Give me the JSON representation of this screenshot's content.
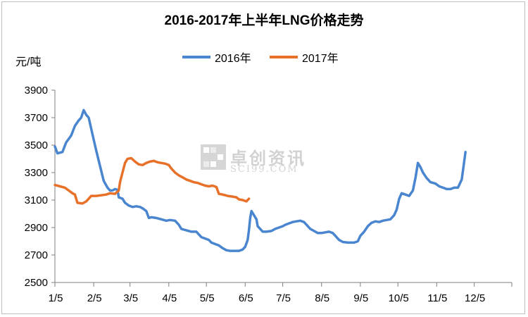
{
  "chart_data": {
    "type": "line",
    "title": "2016-2017年上半年LNG价格走势",
    "ylabel": "元/吨",
    "xlabel": "",
    "ylim": [
      2500,
      3900
    ],
    "yticks": [
      2500,
      2700,
      2900,
      3100,
      3300,
      3500,
      3700,
      3900
    ],
    "x_tick_labels": [
      "1/5",
      "2/5",
      "3/5",
      "4/5",
      "5/5",
      "6/5",
      "7/5",
      "8/5",
      "9/5",
      "10/5",
      "11/5",
      "12/5"
    ],
    "legend_position": "top",
    "grid": false,
    "series": [
      {
        "name": "2016年",
        "color": "#4a86cf",
        "points": [
          [
            1,
            3490
          ],
          [
            3,
            3440
          ],
          [
            7,
            3450
          ],
          [
            10,
            3520
          ],
          [
            14,
            3570
          ],
          [
            17,
            3640
          ],
          [
            20,
            3680
          ],
          [
            22,
            3700
          ],
          [
            24,
            3755
          ],
          [
            26,
            3720
          ],
          [
            28,
            3700
          ],
          [
            31,
            3580
          ],
          [
            34,
            3460
          ],
          [
            37,
            3350
          ],
          [
            40,
            3240
          ],
          [
            43,
            3190
          ],
          [
            45,
            3170
          ],
          [
            47,
            3170
          ],
          [
            49,
            3180
          ],
          [
            51,
            3175
          ],
          [
            52,
            3120
          ],
          [
            55,
            3110
          ],
          [
            57,
            3080
          ],
          [
            60,
            3060
          ],
          [
            63,
            3050
          ],
          [
            66,
            3055
          ],
          [
            69,
            3050
          ],
          [
            71,
            3040
          ],
          [
            74,
            3020
          ],
          [
            76,
            2970
          ],
          [
            78,
            2975
          ],
          [
            82,
            2970
          ],
          [
            86,
            2960
          ],
          [
            90,
            2950
          ],
          [
            93,
            2955
          ],
          [
            97,
            2950
          ],
          [
            100,
            2920
          ],
          [
            102,
            2890
          ],
          [
            106,
            2880
          ],
          [
            110,
            2870
          ],
          [
            114,
            2870
          ],
          [
            116,
            2850
          ],
          [
            118,
            2830
          ],
          [
            121,
            2820
          ],
          [
            124,
            2810
          ],
          [
            126,
            2790
          ],
          [
            129,
            2780
          ],
          [
            132,
            2770
          ],
          [
            135,
            2750
          ],
          [
            138,
            2735
          ],
          [
            141,
            2730
          ],
          [
            145,
            2730
          ],
          [
            148,
            2730
          ],
          [
            151,
            2740
          ],
          [
            153,
            2760
          ],
          [
            155,
            2810
          ],
          [
            156,
            2880
          ],
          [
            157,
            2970
          ],
          [
            158,
            3020
          ],
          [
            160,
            2990
          ],
          [
            162,
            2960
          ],
          [
            163,
            2910
          ],
          [
            165,
            2890
          ],
          [
            167,
            2870
          ],
          [
            170,
            2870
          ],
          [
            174,
            2875
          ],
          [
            177,
            2890
          ],
          [
            180,
            2900
          ],
          [
            183,
            2910
          ],
          [
            185,
            2920
          ],
          [
            188,
            2930
          ],
          [
            191,
            2940
          ],
          [
            194,
            2945
          ],
          [
            197,
            2950
          ],
          [
            200,
            2940
          ],
          [
            202,
            2920
          ],
          [
            205,
            2890
          ],
          [
            208,
            2875
          ],
          [
            211,
            2860
          ],
          [
            214,
            2860
          ],
          [
            217,
            2865
          ],
          [
            220,
            2870
          ],
          [
            223,
            2860
          ],
          [
            225,
            2840
          ],
          [
            228,
            2810
          ],
          [
            231,
            2795
          ],
          [
            235,
            2790
          ],
          [
            240,
            2790
          ],
          [
            243,
            2800
          ],
          [
            245,
            2840
          ],
          [
            248,
            2870
          ],
          [
            251,
            2910
          ],
          [
            254,
            2935
          ],
          [
            257,
            2945
          ],
          [
            260,
            2940
          ],
          [
            263,
            2950
          ],
          [
            266,
            2955
          ],
          [
            269,
            2960
          ],
          [
            272,
            2990
          ],
          [
            274,
            3030
          ],
          [
            276,
            3110
          ],
          [
            278,
            3150
          ],
          [
            281,
            3140
          ],
          [
            284,
            3130
          ],
          [
            287,
            3170
          ],
          [
            289,
            3260
          ],
          [
            291,
            3370
          ],
          [
            293,
            3340
          ],
          [
            295,
            3300
          ],
          [
            298,
            3260
          ],
          [
            301,
            3230
          ],
          [
            305,
            3220
          ],
          [
            308,
            3200
          ],
          [
            311,
            3190
          ],
          [
            314,
            3180
          ],
          [
            317,
            3180
          ],
          [
            320,
            3190
          ],
          [
            323,
            3190
          ],
          [
            326,
            3250
          ],
          [
            329,
            3450
          ]
        ]
      },
      {
        "name": "2017年",
        "color": "#e8712a",
        "points": [
          [
            1,
            3210
          ],
          [
            5,
            3200
          ],
          [
            9,
            3190
          ],
          [
            12,
            3170
          ],
          [
            15,
            3150
          ],
          [
            17,
            3140
          ],
          [
            19,
            3080
          ],
          [
            23,
            3075
          ],
          [
            26,
            3090
          ],
          [
            28,
            3110
          ],
          [
            30,
            3130
          ],
          [
            34,
            3130
          ],
          [
            38,
            3135
          ],
          [
            42,
            3140
          ],
          [
            45,
            3150
          ],
          [
            49,
            3145
          ],
          [
            52,
            3170
          ],
          [
            53,
            3230
          ],
          [
            55,
            3300
          ],
          [
            57,
            3370
          ],
          [
            59,
            3400
          ],
          [
            62,
            3405
          ],
          [
            65,
            3380
          ],
          [
            68,
            3360
          ],
          [
            71,
            3355
          ],
          [
            74,
            3370
          ],
          [
            77,
            3380
          ],
          [
            80,
            3385
          ],
          [
            83,
            3375
          ],
          [
            86,
            3370
          ],
          [
            89,
            3365
          ],
          [
            92,
            3355
          ],
          [
            94,
            3330
          ],
          [
            97,
            3300
          ],
          [
            100,
            3280
          ],
          [
            103,
            3265
          ],
          [
            106,
            3250
          ],
          [
            109,
            3240
          ],
          [
            112,
            3230
          ],
          [
            115,
            3225
          ],
          [
            118,
            3215
          ],
          [
            121,
            3205
          ],
          [
            124,
            3200
          ],
          [
            127,
            3205
          ],
          [
            130,
            3195
          ],
          [
            132,
            3145
          ],
          [
            135,
            3140
          ],
          [
            139,
            3130
          ],
          [
            143,
            3125
          ],
          [
            146,
            3120
          ],
          [
            148,
            3105
          ],
          [
            151,
            3100
          ],
          [
            154,
            3090
          ],
          [
            156,
            3110
          ]
        ]
      }
    ]
  },
  "watermark": {
    "text1": "卓创资讯",
    "text2": "SCI99.COM"
  }
}
